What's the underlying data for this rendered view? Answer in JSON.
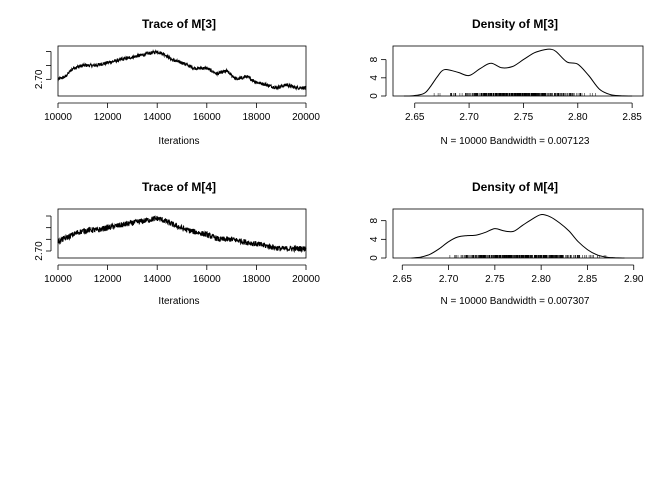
{
  "chart_data": [
    {
      "type": "line",
      "title": "Trace of M[3]",
      "xlabel": "Iterations",
      "ylabel": "",
      "xlim": [
        10000,
        20000
      ],
      "ylim": [
        2.64,
        2.82
      ],
      "x_ticks": [
        10000,
        12000,
        14000,
        16000,
        18000,
        20000
      ],
      "y_ticks": [
        2.7,
        2.75,
        2.8
      ],
      "y_tick_labels": [
        "2.70",
        "",
        ""
      ],
      "series": [
        {
          "x": [
            10000,
            10300,
            10600,
            11000,
            11500,
            12000,
            12500,
            13000,
            13500,
            14000,
            14300,
            14600,
            15000,
            15500,
            16000,
            16400,
            16800,
            17200,
            17600,
            18000,
            18400,
            18800,
            19200,
            19600,
            20000
          ],
          "values": [
            2.7,
            2.71,
            2.74,
            2.75,
            2.75,
            2.76,
            2.77,
            2.78,
            2.79,
            2.8,
            2.79,
            2.77,
            2.76,
            2.74,
            2.74,
            2.72,
            2.73,
            2.7,
            2.71,
            2.69,
            2.68,
            2.67,
            2.68,
            2.67,
            2.67
          ]
        }
      ]
    },
    {
      "type": "line",
      "title": "Density of M[3]",
      "xlabel": "N = 10000   Bandwidth = 0.007123",
      "ylabel": "",
      "xlim": [
        2.63,
        2.86
      ],
      "ylim": [
        0,
        11
      ],
      "x_ticks": [
        2.65,
        2.7,
        2.75,
        2.8,
        2.85
      ],
      "x_tick_labels": [
        "2.65",
        "2.70",
        "2.75",
        "2.80",
        "2.85"
      ],
      "y_ticks": [
        0,
        4,
        8
      ],
      "y_tick_labels": [
        "0",
        "4",
        "8"
      ],
      "rug_range": [
        2.66,
        2.83
      ],
      "series": [
        {
          "x": [
            2.64,
            2.65,
            2.66,
            2.67,
            2.675,
            2.68,
            2.69,
            2.7,
            2.71,
            2.72,
            2.73,
            2.74,
            2.75,
            2.76,
            2.77,
            2.775,
            2.78,
            2.79,
            2.8,
            2.81,
            2.82,
            2.83,
            2.84,
            2.85
          ],
          "values": [
            0,
            0.1,
            0.8,
            4.0,
            5.5,
            5.8,
            5.2,
            4.5,
            6.0,
            7.2,
            6.2,
            6.5,
            8.0,
            9.5,
            10.2,
            10.3,
            9.8,
            7.5,
            7.0,
            4.5,
            1.5,
            0.3,
            0.05,
            0
          ]
        }
      ]
    },
    {
      "type": "line",
      "title": "Trace of M[4]",
      "xlabel": "Iterations",
      "ylabel": "",
      "xlim": [
        10000,
        20000
      ],
      "ylim": [
        2.67,
        2.88
      ],
      "x_ticks": [
        10000,
        12000,
        14000,
        16000,
        18000,
        20000
      ],
      "y_ticks": [
        2.7,
        2.75,
        2.8,
        2.85
      ],
      "y_tick_labels": [
        "2.70",
        "",
        "",
        ""
      ],
      "series": [
        {
          "x": [
            10000,
            10400,
            10800,
            11200,
            11600,
            12000,
            12500,
            13000,
            13500,
            14000,
            14300,
            14700,
            15200,
            15600,
            16000,
            16500,
            17000,
            17500,
            18000,
            18500,
            19000,
            19500,
            20000
          ],
          "values": [
            2.74,
            2.76,
            2.78,
            2.79,
            2.79,
            2.8,
            2.81,
            2.82,
            2.83,
            2.84,
            2.83,
            2.81,
            2.79,
            2.78,
            2.77,
            2.75,
            2.75,
            2.74,
            2.73,
            2.72,
            2.71,
            2.71,
            2.71
          ]
        }
      ]
    },
    {
      "type": "line",
      "title": "Density of M[4]",
      "xlabel": "N = 10000   Bandwidth = 0.007307",
      "ylabel": "",
      "xlim": [
        2.64,
        2.91
      ],
      "ylim": [
        0,
        10.5
      ],
      "x_ticks": [
        2.65,
        2.7,
        2.75,
        2.8,
        2.85,
        2.9
      ],
      "x_tick_labels": [
        "2.65",
        "2.70",
        "2.75",
        "2.80",
        "2.85",
        "2.90"
      ],
      "y_ticks": [
        0,
        4,
        8
      ],
      "y_tick_labels": [
        "0",
        "4",
        "8"
      ],
      "rug_range": [
        2.68,
        2.88
      ],
      "series": [
        {
          "x": [
            2.66,
            2.67,
            2.68,
            2.69,
            2.7,
            2.71,
            2.72,
            2.73,
            2.74,
            2.75,
            2.76,
            2.77,
            2.78,
            2.79,
            2.8,
            2.81,
            2.82,
            2.83,
            2.84,
            2.85,
            2.86,
            2.87,
            2.88,
            2.89
          ],
          "values": [
            0,
            0.2,
            0.8,
            2.0,
            3.5,
            4.5,
            4.8,
            4.9,
            5.5,
            6.3,
            5.8,
            5.7,
            7.0,
            8.3,
            9.3,
            8.8,
            7.5,
            5.8,
            3.5,
            1.8,
            0.7,
            0.2,
            0.05,
            0
          ]
        }
      ]
    }
  ]
}
